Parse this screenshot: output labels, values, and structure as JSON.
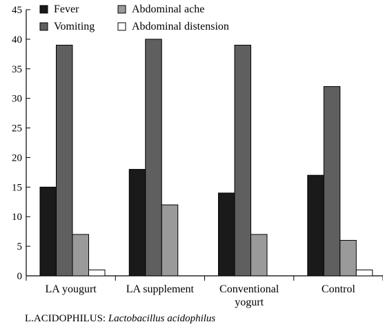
{
  "chart_data": {
    "type": "bar",
    "categories": [
      "LA yougurt",
      "LA supplement",
      "Conventional yogurt",
      "Control"
    ],
    "category_lines": [
      [
        "LA yougurt"
      ],
      [
        "LA supplement"
      ],
      [
        "Conventional",
        "yogurt"
      ],
      [
        "Control"
      ]
    ],
    "series": [
      {
        "name": "Fever",
        "color": "#1a1a1a",
        "values": [
          15,
          18,
          14,
          17
        ]
      },
      {
        "name": "Vomiting",
        "color": "#5f5f5f",
        "values": [
          39,
          40,
          39,
          32
        ]
      },
      {
        "name": "Abdominal ache",
        "color": "#9a9a9a",
        "values": [
          7,
          12,
          7,
          6
        ]
      },
      {
        "name": "Abdominal distension",
        "color": "#ffffff",
        "values": [
          1,
          0,
          0,
          1
        ]
      }
    ],
    "ylim": [
      0,
      45
    ],
    "yticks": [
      0,
      5,
      10,
      15,
      20,
      25,
      30,
      35,
      40,
      45
    ],
    "legend_position": "top-left",
    "grid": false
  },
  "footnote": {
    "prefix": "L.ACIDOPHILUS: ",
    "italic": "Lactobacillus acidophilus"
  }
}
